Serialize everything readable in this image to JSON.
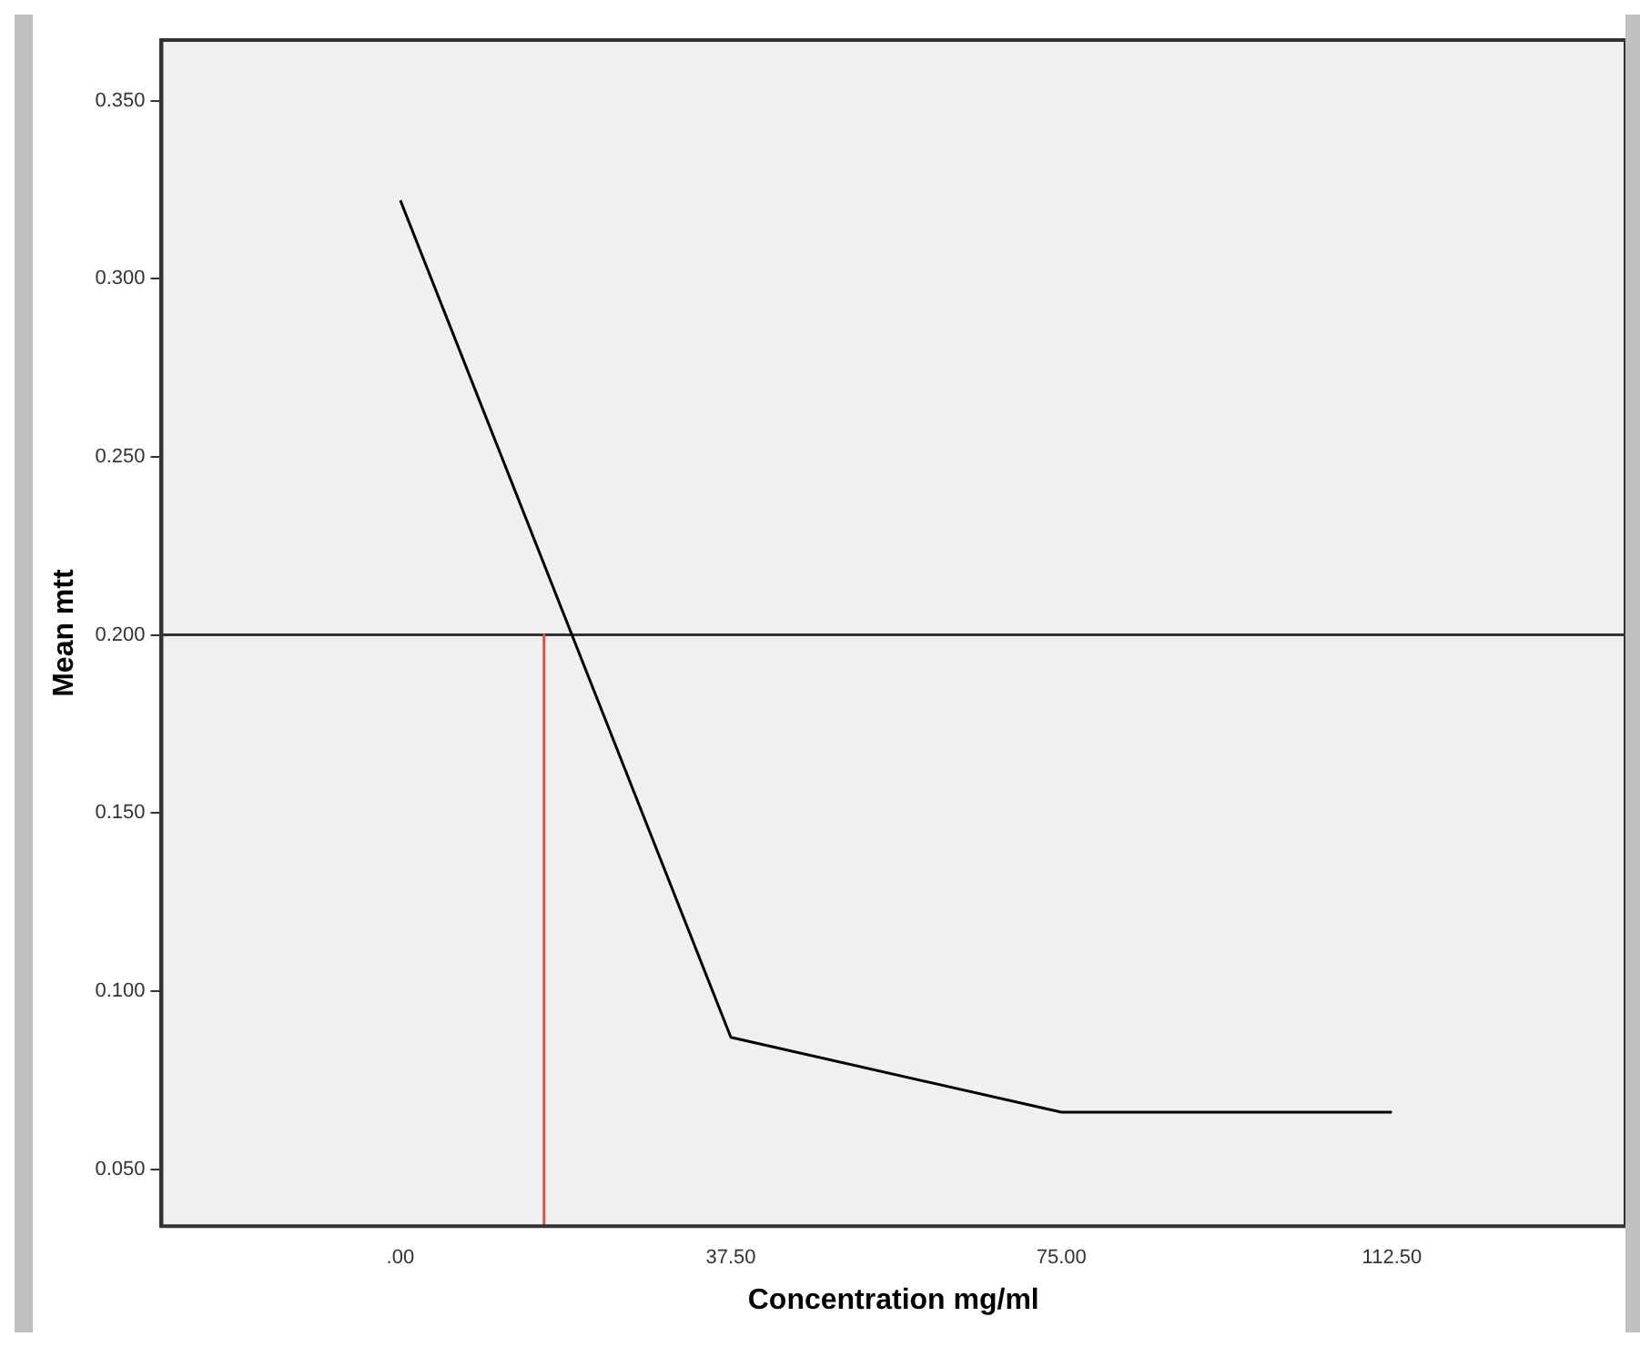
{
  "chart_data": {
    "type": "line",
    "xlabel": "Concentration mg/ml",
    "ylabel": "Mean mtt",
    "x": [
      0,
      37.5,
      75,
      112.5
    ],
    "series": [
      {
        "color": "#000000",
        "values": [
          0.322,
          0.087,
          0.066,
          0.066
        ]
      },
      {
        "color": "#d9534f",
        "x": [
          16.3,
          16.3
        ],
        "values": [
          0.2,
          0.034
        ]
      }
    ],
    "xlim": [
      -27.1,
      139
    ],
    "xticks": [
      {
        "value": 0,
        "label": ".00"
      },
      {
        "value": 37.5,
        "label": "37.50"
      },
      {
        "value": 75,
        "label": "75.00"
      },
      {
        "value": 112.5,
        "label": "112.50"
      }
    ],
    "ylim": [
      0.034,
      0.367
    ],
    "yticks": [
      {
        "value": 0.05,
        "label": "0.050"
      },
      {
        "value": 0.1,
        "label": "0.100"
      },
      {
        "value": 0.15,
        "label": "0.150"
      },
      {
        "value": 0.2,
        "label": "0.200"
      },
      {
        "value": 0.25,
        "label": "0.250"
      },
      {
        "value": 0.3,
        "label": "0.300"
      },
      {
        "value": 0.35,
        "label": "0.350"
      }
    ],
    "ref_lines": [
      {
        "axis": "y",
        "value": 0.2,
        "color": "#333333"
      }
    ],
    "grid": false,
    "legend": false,
    "marker": "none",
    "line_style": "solid"
  }
}
